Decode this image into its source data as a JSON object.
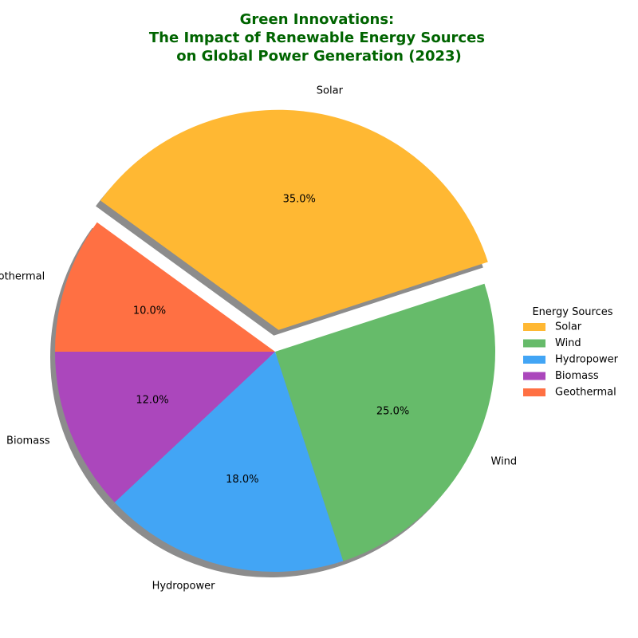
{
  "chart_data": {
    "type": "pie",
    "title_lines": [
      "Green Innovations:",
      "The Impact of Renewable Energy Sources",
      "on Global Power Generation (2023)"
    ],
    "title_color": "#006400",
    "categories": [
      "Solar",
      "Wind",
      "Hydropower",
      "Biomass",
      "Geothermal"
    ],
    "values": [
      35.0,
      25.0,
      18.0,
      12.0,
      10.0
    ],
    "value_labels": [
      "35.0%",
      "25.0%",
      "18.0%",
      "12.0%",
      "10.0%"
    ],
    "colors": [
      "#FFB833",
      "#66BB6A",
      "#42A5F5",
      "#AB47BC",
      "#FF7043"
    ],
    "exploded": [
      "Solar"
    ],
    "shadow": true,
    "start_angle_deg": 144,
    "direction": "clockwise",
    "legend": {
      "title": "Energy Sources",
      "placement": "center-right",
      "entries": [
        "Solar",
        "Wind",
        "Hydropower",
        "Biomass",
        "Geothermal"
      ]
    }
  }
}
